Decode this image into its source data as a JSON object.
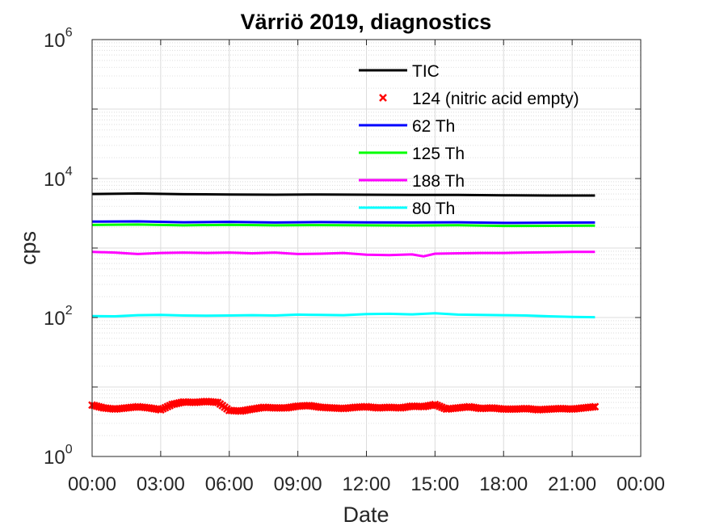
{
  "chart_data": {
    "type": "line",
    "title": "Värriö 2019, diagnostics",
    "xlabel": "Date",
    "ylabel": "cps",
    "yscale": "log",
    "ylim": [
      1,
      1000000
    ],
    "xlim_hours": [
      0,
      24
    ],
    "xticks": [
      "00:00",
      "03:00",
      "06:00",
      "09:00",
      "12:00",
      "15:00",
      "18:00",
      "21:00",
      "00:00"
    ],
    "yticks": [
      {
        "base": "10",
        "exp": "0"
      },
      {
        "base": "10",
        "exp": "2"
      },
      {
        "base": "10",
        "exp": "4"
      },
      {
        "base": "10",
        "exp": "6"
      }
    ],
    "grid": true,
    "legend_position": "top-right",
    "series": [
      {
        "name": "TIC",
        "color": "#000000",
        "marker": "line",
        "x": [
          "00:00",
          "02:00",
          "04:00",
          "06:00",
          "08:00",
          "10:00",
          "12:00",
          "14:00",
          "16:00",
          "18:00",
          "20:00",
          "22:00"
        ],
        "values": [
          6000,
          6100,
          5950,
          5900,
          5850,
          5900,
          5850,
          5800,
          5800,
          5750,
          5700,
          5700
        ]
      },
      {
        "name": "124 (nitric acid empty)",
        "color": "#ff0000",
        "marker": "x",
        "x": [
          "00:00",
          "00:30",
          "01:00",
          "01:30",
          "02:00",
          "02:30",
          "03:00",
          "03:30",
          "04:00",
          "04:30",
          "05:00",
          "05:30",
          "06:00",
          "06:30",
          "07:00",
          "07:30",
          "08:00",
          "08:30",
          "09:00",
          "09:30",
          "10:00",
          "10:30",
          "11:00",
          "11:30",
          "12:00",
          "12:30",
          "13:00",
          "13:30",
          "14:00",
          "14:30",
          "15:00",
          "15:30",
          "16:00",
          "16:30",
          "17:00",
          "17:30",
          "18:00",
          "18:30",
          "19:00",
          "19:30",
          "20:00",
          "20:30",
          "21:00",
          "21:30",
          "22:00"
        ],
        "values": [
          5.5,
          5.0,
          4.8,
          5.0,
          5.2,
          5.0,
          4.7,
          5.6,
          6.1,
          6.0,
          6.2,
          6.0,
          4.6,
          4.5,
          4.8,
          5.1,
          5.0,
          5.0,
          5.3,
          5.4,
          5.1,
          5.0,
          4.9,
          5.1,
          5.2,
          5.0,
          5.1,
          5.0,
          5.3,
          5.2,
          5.6,
          4.8,
          5.0,
          5.2,
          4.9,
          5.0,
          4.8,
          4.8,
          4.9,
          4.7,
          4.8,
          4.9,
          4.8,
          5.0,
          5.2
        ]
      },
      {
        "name": "62 Th",
        "color": "#0000ff",
        "marker": "line",
        "x": [
          "00:00",
          "02:00",
          "04:00",
          "06:00",
          "08:00",
          "10:00",
          "12:00",
          "14:00",
          "16:00",
          "18:00",
          "20:00",
          "22:00"
        ],
        "values": [
          2400,
          2420,
          2350,
          2380,
          2330,
          2360,
          2340,
          2330,
          2350,
          2300,
          2320,
          2330
        ]
      },
      {
        "name": "125 Th",
        "color": "#00ff00",
        "marker": "line",
        "x": [
          "00:00",
          "02:00",
          "04:00",
          "06:00",
          "08:00",
          "10:00",
          "12:00",
          "14:00",
          "16:00",
          "18:00",
          "20:00",
          "22:00"
        ],
        "values": [
          2150,
          2180,
          2120,
          2160,
          2120,
          2140,
          2120,
          2110,
          2130,
          2080,
          2090,
          2100
        ]
      },
      {
        "name": "188 Th",
        "color": "#ff00ff",
        "marker": "line",
        "x": [
          "00:00",
          "01:00",
          "02:00",
          "03:00",
          "04:00",
          "05:00",
          "06:00",
          "07:00",
          "08:00",
          "09:00",
          "10:00",
          "11:00",
          "12:00",
          "13:00",
          "14:00",
          "14:30",
          "15:00",
          "16:00",
          "17:00",
          "18:00",
          "19:00",
          "20:00",
          "21:00",
          "22:00"
        ],
        "values": [
          880,
          860,
          820,
          850,
          860,
          850,
          860,
          840,
          860,
          820,
          830,
          850,
          800,
          790,
          810,
          760,
          830,
          840,
          850,
          850,
          860,
          870,
          880,
          880
        ]
      },
      {
        "name": "80 Th",
        "color": "#00ffff",
        "marker": "line",
        "x": [
          "00:00",
          "01:00",
          "02:00",
          "03:00",
          "04:00",
          "05:00",
          "06:00",
          "07:00",
          "08:00",
          "09:00",
          "10:00",
          "11:00",
          "12:00",
          "13:00",
          "14:00",
          "15:00",
          "16:00",
          "17:00",
          "18:00",
          "19:00",
          "20:00",
          "21:00",
          "22:00"
        ],
        "values": [
          105,
          104,
          108,
          109,
          107,
          106,
          107,
          108,
          107,
          110,
          109,
          108,
          112,
          113,
          111,
          115,
          110,
          109,
          108,
          107,
          104,
          102,
          101
        ]
      }
    ]
  }
}
